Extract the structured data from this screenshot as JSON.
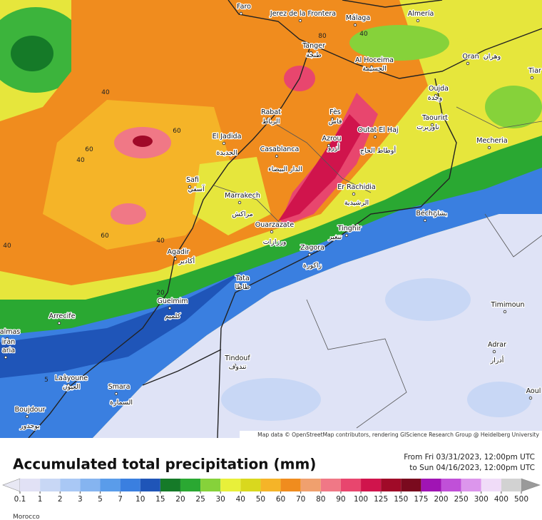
{
  "map": {
    "cities": [
      {
        "name": "Faro"
      },
      {
        "name": "Jerez de la Frontera"
      },
      {
        "name": "Málaga"
      },
      {
        "name": "Almería"
      },
      {
        "name": "Tanger",
        "arabic": "طنجة"
      },
      {
        "name": "Al Hoceima",
        "arabic": "الحسيمة"
      },
      {
        "name": "Oran",
        "arabic": "وهران"
      },
      {
        "name": "Tiar"
      },
      {
        "name": "Oujda",
        "arabic": "وجدة"
      },
      {
        "name": "Rabat",
        "arabic": "الرباط"
      },
      {
        "name": "Fès",
        "arabic": "فاس"
      },
      {
        "name": "Taourirt",
        "arabic": "تاوريرت"
      },
      {
        "name": "Mecheria"
      },
      {
        "name": "El Jadida",
        "arabic": "الجديدة"
      },
      {
        "name": "Casablanca",
        "arabic": "الدار البيضاء"
      },
      {
        "name": "Azrou",
        "arabic": "أزرو"
      },
      {
        "name": "Outat El Haj",
        "arabic": "أوطاط الحاج"
      },
      {
        "name": "Safi",
        "arabic": "آسفي"
      },
      {
        "name": "Er Rachidia",
        "arabic": "الرشيدية"
      },
      {
        "name": "Marrakech",
        "arabic": "مراكش"
      },
      {
        "name": "Béchar",
        "arabic": "بشار"
      },
      {
        "name": "Ouarzazate",
        "arabic": "ورزازات"
      },
      {
        "name": "Tinghir",
        "arabic": "تنغير"
      },
      {
        "name": "Agadir",
        "arabic": "أكادير"
      },
      {
        "name": "Zagora",
        "arabic": "زاكورة"
      },
      {
        "name": "Tata",
        "arabic": "طاطا"
      },
      {
        "name": "Guelmim",
        "arabic": "كلميم"
      },
      {
        "name": "Timimoun"
      },
      {
        "name": "Arrecife"
      },
      {
        "name": "Tindouf",
        "arabic": "تندوف"
      },
      {
        "name": "Adrar",
        "arabic": "أدرار"
      },
      {
        "name": "Laâyoune",
        "arabic": "العيون"
      },
      {
        "name": "Smara",
        "arabic": "السمارة"
      },
      {
        "name": "Aoul"
      },
      {
        "name": "Boujdour",
        "arabic": "بوجدور"
      },
      {
        "name": "almas"
      },
      {
        "name": "iran"
      },
      {
        "name": "aria"
      }
    ],
    "contour_labels": [
      40,
      60,
      60,
      40,
      60,
      40,
      40,
      80,
      40,
      20,
      5
    ],
    "attribution": "Map data © OpenStreetMap contributors, rendering GIScience Research Group @ Heidelberg University"
  },
  "legend": {
    "title": "Accumulated total precipitation (mm)",
    "period_from": "From Fri 03/31/2023, 12:00pm UTC",
    "period_to": "to Sun 04/16/2023, 12:00pm UTC",
    "levels": [
      0.1,
      1,
      2,
      3,
      5,
      7,
      10,
      15,
      20,
      25,
      30,
      40,
      50,
      60,
      70,
      80,
      90,
      100,
      125,
      150,
      175,
      200,
      250,
      300,
      400,
      500
    ],
    "colors": [
      "#e1e1f5",
      "#c8d7f5",
      "#a9c8f5",
      "#85b4f0",
      "#5a9cea",
      "#3a7fe0",
      "#1f55b8",
      "#157a28",
      "#2aa832",
      "#86d23a",
      "#e8f03a",
      "#d9d81e",
      "#f5b428",
      "#f08c1e",
      "#f0a06e",
      "#f07886",
      "#e8466e",
      "#d0144c",
      "#a00a28",
      "#7a0a1e",
      "#a014b4",
      "#c050d8",
      "#dc96ec",
      "#f0dcf8",
      "#d2d2d2"
    ],
    "under_color": "#e8e8f4",
    "over_color": "#9a9a9a"
  },
  "footer": {
    "caption": "Morocco"
  }
}
